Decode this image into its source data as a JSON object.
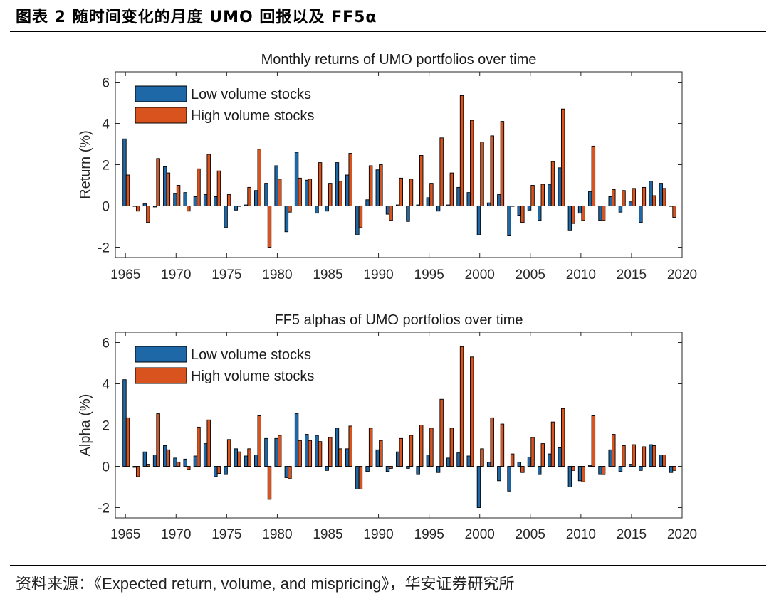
{
  "figure": {
    "heading": "图表 2  随时间变化的月度 UMO 回报以及 FF5α",
    "source_prefix": "资料来源：",
    "source_title": "《Expected return, volume, and mispricing》",
    "source_suffix": "，华安证券研究所"
  },
  "colors": {
    "low": "#1f68a8",
    "high": "#d9531e",
    "edge": "#000000"
  },
  "chart_data": [
    {
      "type": "bar",
      "title": "Monthly returns of UMO portfolios over time",
      "xlabel": "",
      "ylabel": "Return (%)",
      "xlim": [
        1964,
        2020
      ],
      "ylim": [
        -2.5,
        6.5
      ],
      "xticks": [
        1965,
        1970,
        1975,
        1980,
        1985,
        1990,
        1995,
        2000,
        2005,
        2010,
        2015,
        2020
      ],
      "yticks": [
        -2,
        0,
        2,
        4,
        6
      ],
      "legend_position": "top-left",
      "x": [
        1965,
        1966,
        1967,
        1968,
        1969,
        1970,
        1971,
        1972,
        1973,
        1974,
        1975,
        1976,
        1977,
        1978,
        1979,
        1980,
        1981,
        1982,
        1983,
        1984,
        1985,
        1986,
        1987,
        1988,
        1989,
        1990,
        1991,
        1992,
        1993,
        1994,
        1995,
        1996,
        1997,
        1998,
        1999,
        2000,
        2001,
        2002,
        2003,
        2004,
        2005,
        2006,
        2007,
        2008,
        2009,
        2010,
        2011,
        2012,
        2013,
        2014,
        2015,
        2016,
        2017,
        2018,
        2019
      ],
      "series": [
        {
          "name": "Low volume stocks",
          "values": [
            3.25,
            0.0,
            0.1,
            -0.05,
            1.9,
            0.6,
            0.65,
            0.45,
            0.55,
            0.45,
            -1.05,
            -0.2,
            0.05,
            0.75,
            1.1,
            1.95,
            -1.25,
            2.6,
            1.25,
            -0.35,
            -0.25,
            2.1,
            1.5,
            -1.4,
            0.3,
            1.75,
            -0.4,
            0.05,
            -0.75,
            0.05,
            0.4,
            -0.25,
            0.05,
            0.9,
            0.65,
            -1.4,
            0.15,
            0.55,
            -1.45,
            -0.45,
            -0.2,
            -0.7,
            1.05,
            1.85,
            -1.2,
            -0.35,
            0.7,
            -0.7,
            0.45,
            -0.3,
            0.2,
            -0.8,
            1.2,
            1.1,
            0.0
          ]
        },
        {
          "name": "High volume stocks",
          "values": [
            1.5,
            -0.25,
            -0.8,
            2.3,
            1.6,
            1.0,
            -0.25,
            1.8,
            2.5,
            1.7,
            0.55,
            0.0,
            0.9,
            2.75,
            -2.0,
            1.3,
            -0.3,
            1.35,
            1.3,
            2.1,
            1.1,
            1.2,
            2.55,
            -1.05,
            1.95,
            2.0,
            -0.7,
            1.35,
            1.3,
            2.45,
            1.1,
            3.3,
            1.6,
            5.35,
            4.15,
            3.1,
            3.4,
            4.1,
            0.0,
            -0.8,
            1.0,
            1.05,
            2.15,
            4.7,
            -0.85,
            -0.7,
            2.9,
            -0.7,
            0.8,
            0.75,
            0.85,
            0.9,
            0.5,
            0.85,
            -0.55
          ]
        }
      ]
    },
    {
      "type": "bar",
      "title": "FF5 alphas of UMO portfolios over time",
      "xlabel": "",
      "ylabel": "Alpha (%)",
      "xlim": [
        1964,
        2020
      ],
      "ylim": [
        -2.5,
        6.5
      ],
      "xticks": [
        1965,
        1970,
        1975,
        1980,
        1985,
        1990,
        1995,
        2000,
        2005,
        2010,
        2015,
        2020
      ],
      "yticks": [
        -2,
        0,
        2,
        4,
        6
      ],
      "legend_position": "top-left",
      "x": [
        1965,
        1966,
        1967,
        1968,
        1969,
        1970,
        1971,
        1972,
        1973,
        1974,
        1975,
        1976,
        1977,
        1978,
        1979,
        1980,
        1981,
        1982,
        1983,
        1984,
        1985,
        1986,
        1987,
        1988,
        1989,
        1990,
        1991,
        1992,
        1993,
        1994,
        1995,
        1996,
        1997,
        1998,
        1999,
        2000,
        2001,
        2002,
        2003,
        2004,
        2005,
        2006,
        2007,
        2008,
        2009,
        2010,
        2011,
        2012,
        2013,
        2014,
        2015,
        2016,
        2017,
        2018,
        2019
      ],
      "series": [
        {
          "name": "Low volume stocks",
          "values": [
            4.2,
            -0.05,
            0.7,
            0.55,
            1.0,
            0.4,
            0.35,
            0.5,
            1.1,
            -0.5,
            -0.4,
            0.85,
            0.5,
            0.55,
            1.35,
            1.35,
            -0.55,
            2.55,
            1.55,
            1.5,
            -0.2,
            1.85,
            0.85,
            -1.1,
            -0.25,
            0.8,
            -0.25,
            0.7,
            -0.1,
            -0.4,
            0.55,
            -0.3,
            0.4,
            0.65,
            0.5,
            -2.0,
            0.2,
            -0.7,
            -1.2,
            0.2,
            0.45,
            -0.4,
            0.6,
            0.9,
            -1.0,
            -0.7,
            0.05,
            -0.4,
            0.8,
            -0.25,
            0.1,
            -0.2,
            1.05,
            0.55,
            -0.3
          ]
        },
        {
          "name": "High volume stocks",
          "values": [
            2.35,
            -0.5,
            0.1,
            2.55,
            0.8,
            0.2,
            -0.15,
            1.9,
            2.25,
            -0.35,
            1.3,
            0.7,
            0.85,
            2.45,
            -1.6,
            1.5,
            -0.6,
            1.25,
            1.25,
            1.2,
            1.4,
            0.85,
            1.95,
            -1.1,
            1.85,
            1.25,
            -0.1,
            1.35,
            1.5,
            2.0,
            1.85,
            3.25,
            1.85,
            5.8,
            5.3,
            0.85,
            2.35,
            2.05,
            0.6,
            -0.3,
            1.4,
            1.1,
            2.15,
            2.8,
            -0.2,
            -0.75,
            2.45,
            -0.4,
            1.55,
            1.0,
            1.05,
            0.95,
            1.0,
            0.55,
            -0.2
          ]
        }
      ]
    }
  ]
}
